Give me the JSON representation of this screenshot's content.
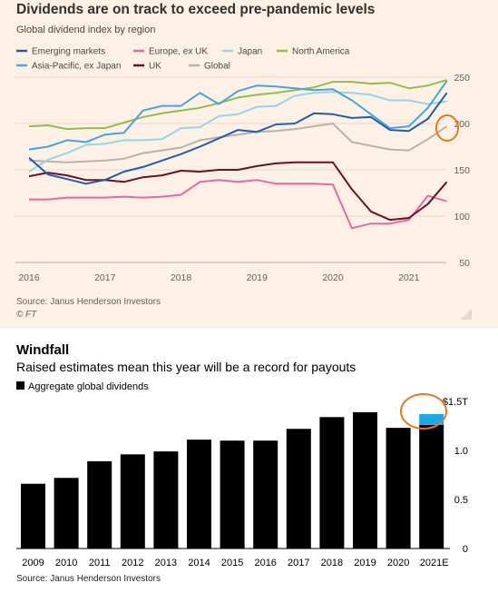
{
  "chart_data": [
    {
      "type": "line",
      "title": "Dividends are on track to exceed pre-pandemic levels",
      "subtitle": "Global dividend index by region",
      "source": "Source: Janus Henderson Investors",
      "credit": "© FT",
      "ylim": [
        50,
        250
      ],
      "yticks": [
        50,
        100,
        150,
        200,
        250
      ],
      "xticks": [
        "2016",
        "2017",
        "2018",
        "2019",
        "2020",
        "2021"
      ],
      "grid": true,
      "legend_position": "top",
      "x": [
        2016.0,
        2016.25,
        2016.5,
        2016.75,
        2017.0,
        2017.25,
        2017.5,
        2017.75,
        2018.0,
        2018.25,
        2018.5,
        2018.75,
        2019.0,
        2019.25,
        2019.5,
        2019.75,
        2020.0,
        2020.25,
        2020.5,
        2020.75,
        2021.0,
        2021.25,
        2021.5
      ],
      "series": [
        {
          "name": "Emerging markets",
          "color": "#1f5ea8",
          "values": [
            163,
            145,
            140,
            135,
            139,
            148,
            153,
            160,
            167,
            175,
            184,
            193,
            191,
            199,
            200,
            211,
            210,
            206,
            207,
            193,
            192,
            205,
            233
          ]
        },
        {
          "name": "Asia-Pacific, ex Japan",
          "color": "#4aa3df",
          "values": [
            172,
            175,
            182,
            180,
            188,
            190,
            214,
            219,
            219,
            233,
            221,
            235,
            241,
            240,
            238,
            236,
            237,
            225,
            210,
            195,
            197,
            217,
            246
          ]
        },
        {
          "name": "Europe, ex UK",
          "color": "#e66aa1",
          "values": [
            118,
            118,
            120,
            120,
            120,
            121,
            120,
            121,
            123,
            137,
            139,
            137,
            139,
            135,
            135,
            135,
            134,
            87,
            92,
            92,
            96,
            122,
            116
          ]
        },
        {
          "name": "UK",
          "color": "#6b0f2a",
          "values": [
            143,
            147,
            144,
            139,
            139,
            137,
            142,
            144,
            149,
            148,
            150,
            150,
            154,
            157,
            158,
            158,
            158,
            129,
            105,
            96,
            98,
            113,
            137
          ]
        },
        {
          "name": "Japan",
          "color": "#96d5e8",
          "values": [
            148,
            161,
            168,
            177,
            178,
            182,
            182,
            183,
            195,
            196,
            208,
            210,
            218,
            219,
            230,
            233,
            234,
            233,
            231,
            225,
            225,
            221,
            224
          ]
        },
        {
          "name": "Global",
          "color": "#b8b2ad",
          "values": [
            160,
            159,
            158,
            159,
            160,
            162,
            168,
            171,
            174,
            182,
            185,
            188,
            191,
            192,
            194,
            197,
            200,
            180,
            176,
            172,
            171,
            183,
            197
          ]
        },
        {
          "name": "North America",
          "color": "#93bd4c",
          "values": [
            197,
            198,
            194,
            195,
            195,
            201,
            207,
            211,
            214,
            217,
            222,
            228,
            231,
            233,
            236,
            239,
            245,
            245,
            243,
            244,
            238,
            241,
            247
          ]
        }
      ]
    },
    {
      "type": "bar",
      "title": "Windfall",
      "subtitle": "Raised estimates mean this year will be a record for payouts",
      "source": "Source: Janus Henderson Investors",
      "legend": [
        "Aggregate global dividends"
      ],
      "categories": [
        "2009",
        "2010",
        "2011",
        "2012",
        "2013",
        "2014",
        "2015",
        "2016",
        "2017",
        "2018",
        "2019",
        "2020",
        "2021E"
      ],
      "values": [
        0.66,
        0.72,
        0.89,
        0.96,
        0.99,
        1.11,
        1.1,
        1.1,
        1.22,
        1.34,
        1.39,
        1.23,
        1.26
      ],
      "extra_segment": {
        "category": "2021E",
        "value": 0.11,
        "color": "#1aa7ec"
      },
      "ylim": [
        0,
        1.5
      ],
      "yticks": [
        {
          "value": 0,
          "label": "0"
        },
        {
          "value": 0.5,
          "label": "0.5"
        },
        {
          "value": 1.0,
          "label": "1.0"
        },
        {
          "value": 1.5,
          "label": "$1.5T"
        }
      ],
      "bar_color": "#000000"
    }
  ]
}
